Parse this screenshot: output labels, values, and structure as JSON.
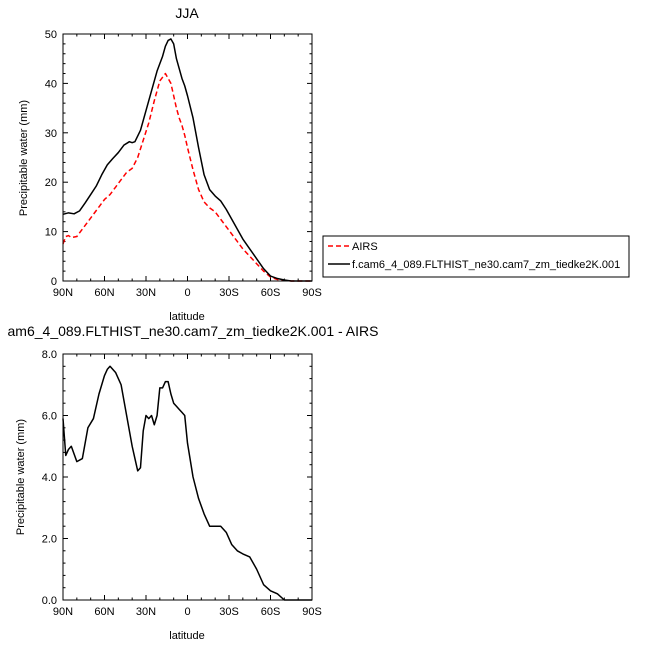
{
  "chart_data": [
    {
      "type": "line",
      "title": "JJA",
      "xlabel": "latitude",
      "ylabel": "Precipitable water (mm)",
      "xlim": [
        90,
        -90
      ],
      "ylim": [
        0,
        50
      ],
      "xtick_values": [
        90,
        60,
        30,
        0,
        -30,
        -60,
        -90
      ],
      "xtick_labels": [
        "90N",
        "60N",
        "30N",
        "0",
        "30S",
        "60S",
        "90S"
      ],
      "ytick_values": [
        0,
        10,
        20,
        30,
        40,
        50
      ],
      "ytick_labels": [
        "0",
        "10",
        "20",
        "30",
        "40",
        "50"
      ],
      "legend_position": "right",
      "series": [
        {
          "name": "AIRS",
          "color": "#ff0000",
          "dash": "dashed",
          "x": [
            90,
            88,
            86,
            84,
            80,
            76,
            72,
            68,
            64,
            60,
            56,
            52,
            48,
            44,
            40,
            36,
            32,
            28,
            24,
            20,
            16,
            12,
            10,
            8,
            6,
            4,
            2,
            0,
            -4,
            -8,
            -12,
            -16,
            -20,
            -24,
            -28,
            -32,
            -36,
            -40,
            -45,
            -50,
            -55,
            -60,
            -65,
            -70,
            -75,
            -80,
            -85,
            -90
          ],
          "y": [
            7.5,
            9.0,
            9.2,
            8.8,
            9.0,
            10.5,
            12.0,
            13.5,
            15.0,
            16.5,
            17.5,
            19.0,
            20.5,
            22.0,
            22.8,
            25.0,
            28.5,
            32.0,
            36.5,
            40.5,
            42.0,
            40.0,
            37.5,
            35.0,
            33.0,
            31.5,
            29.5,
            27.0,
            22.5,
            18.5,
            16.0,
            14.8,
            14.0,
            12.5,
            11.0,
            9.5,
            8.0,
            6.5,
            5.0,
            3.5,
            2.0,
            0.8,
            0.3,
            0.1,
            0.0,
            0.0,
            0.0,
            0.0
          ]
        },
        {
          "name": "f.cam6_4_089.FLTHIST_ne30.cam7_zm_tiedke2K.001",
          "color": "#000000",
          "dash": "solid",
          "x": [
            90,
            86,
            82,
            78,
            74,
            70,
            66,
            62,
            58,
            54,
            50,
            46,
            42,
            40,
            38,
            34,
            30,
            26,
            22,
            18,
            16,
            14,
            12,
            10,
            8,
            6,
            4,
            2,
            0,
            -4,
            -8,
            -12,
            -16,
            -20,
            -24,
            -28,
            -32,
            -36,
            -40,
            -45,
            -50,
            -55,
            -60,
            -65,
            -70,
            -75,
            -80,
            -85,
            -90
          ],
          "y": [
            13.5,
            13.8,
            13.6,
            14.2,
            15.8,
            17.5,
            19.2,
            21.5,
            23.5,
            24.8,
            26.0,
            27.5,
            28.2,
            28.0,
            28.2,
            30.5,
            34.5,
            38.5,
            42.5,
            45.5,
            47.5,
            48.7,
            49.0,
            48.0,
            45.0,
            43.0,
            41.0,
            39.5,
            37.5,
            33.0,
            27.0,
            21.5,
            18.5,
            17.2,
            16.2,
            14.5,
            12.5,
            10.5,
            8.5,
            6.5,
            4.5,
            2.5,
            1.0,
            0.5,
            0.2,
            0.0,
            0.0,
            0.0,
            0.0
          ]
        }
      ]
    },
    {
      "type": "line",
      "title": "am6_4_089.FLTHIST_ne30.cam7_zm_tiedke2K.001 - AIRS",
      "xlabel": "latitude",
      "ylabel": "Precipitable water (mm)",
      "xlim": [
        90,
        -90
      ],
      "ylim": [
        0,
        8
      ],
      "xtick_values": [
        90,
        60,
        30,
        0,
        -30,
        -60,
        -90
      ],
      "xtick_labels": [
        "90N",
        "60N",
        "30N",
        "0",
        "30S",
        "60S",
        "90S"
      ],
      "ytick_values": [
        0,
        2,
        4,
        6,
        8
      ],
      "ytick_labels": [
        "0.0",
        "2.0",
        "4.0",
        "6.0",
        "8.0"
      ],
      "series": [
        {
          "color": "#000000",
          "dash": "solid",
          "x": [
            90,
            88,
            86,
            84,
            80,
            76,
            72,
            68,
            64,
            60,
            58,
            56,
            52,
            48,
            44,
            40,
            38,
            36,
            34,
            32,
            30,
            28,
            26,
            24,
            22,
            20,
            18,
            16,
            14,
            12,
            10,
            8,
            6,
            4,
            2,
            0,
            -4,
            -8,
            -12,
            -16,
            -20,
            -24,
            -28,
            -32,
            -36,
            -40,
            -45,
            -50,
            -55,
            -60,
            -65,
            -70,
            -75,
            -80,
            -85,
            -90
          ],
          "y": [
            5.9,
            4.7,
            4.9,
            5.0,
            4.5,
            4.6,
            5.6,
            5.9,
            6.7,
            7.3,
            7.5,
            7.6,
            7.4,
            7.0,
            6.0,
            5.0,
            4.6,
            4.2,
            4.3,
            5.5,
            6.0,
            5.9,
            6.0,
            5.7,
            6.0,
            6.9,
            6.9,
            7.1,
            7.1,
            6.7,
            6.4,
            6.3,
            6.2,
            6.1,
            6.0,
            5.1,
            4.0,
            3.3,
            2.8,
            2.4,
            2.4,
            2.4,
            2.2,
            1.8,
            1.6,
            1.5,
            1.4,
            1.0,
            0.5,
            0.3,
            0.2,
            0.0,
            0.0,
            0.0,
            0.0,
            0.0
          ]
        }
      ]
    }
  ]
}
